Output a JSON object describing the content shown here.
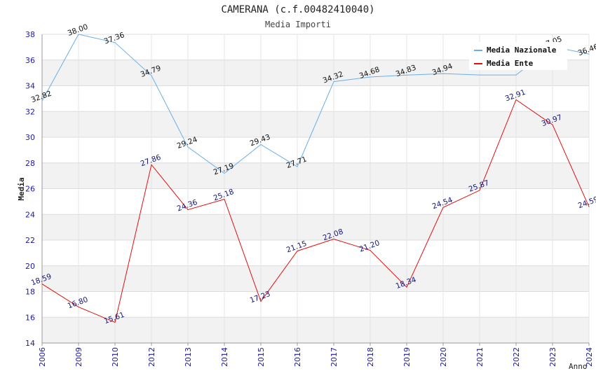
{
  "chart_data": {
    "type": "line",
    "title": "CAMERANA (c.f.00482410040)",
    "subtitle": "Media Importi",
    "xlabel": "Anno",
    "ylabel": "Media",
    "ylim": [
      14,
      38
    ],
    "yticks": [
      14,
      16,
      18,
      20,
      22,
      24,
      26,
      28,
      30,
      32,
      34,
      36,
      38
    ],
    "categories": [
      "2006",
      "2009",
      "2010",
      "2012",
      "2013",
      "2014",
      "2015",
      "2016",
      "2017",
      "2018",
      "2019",
      "2020",
      "2021",
      "2022",
      "2023",
      "2024"
    ],
    "grid": true,
    "legend_position": "top-right",
    "series": [
      {
        "name": "Media Nazionale",
        "color": "#6aaee8",
        "label_color": "#111111",
        "values": [
          32.82,
          38.0,
          37.36,
          34.79,
          29.24,
          27.19,
          29.43,
          27.71,
          34.32,
          34.68,
          34.83,
          34.94,
          34.84,
          34.84,
          37.05,
          36.46
        ],
        "labels": [
          "32.82",
          "38.00",
          "37.36",
          "34.79",
          "29.24",
          "27.19",
          "29.43",
          "27.71",
          "34.32",
          "34.68",
          "34.83",
          "34.94",
          "",
          "",
          "37.05",
          "36.46"
        ]
      },
      {
        "name": "Media Ente",
        "color": "#e01010",
        "label_color": "#15157a",
        "values": [
          18.59,
          16.8,
          15.61,
          27.86,
          24.36,
          25.18,
          17.23,
          21.15,
          22.08,
          21.2,
          18.34,
          24.54,
          25.87,
          32.91,
          30.97,
          24.59
        ],
        "labels": [
          "18.59",
          "16.80",
          "15.61",
          "27.86",
          "24.36",
          "25.18",
          "17.23",
          "21.15",
          "22.08",
          "21.20",
          "18.34",
          "24.54",
          "25.87",
          "32.91",
          "30.97",
          "24.59"
        ]
      }
    ]
  }
}
